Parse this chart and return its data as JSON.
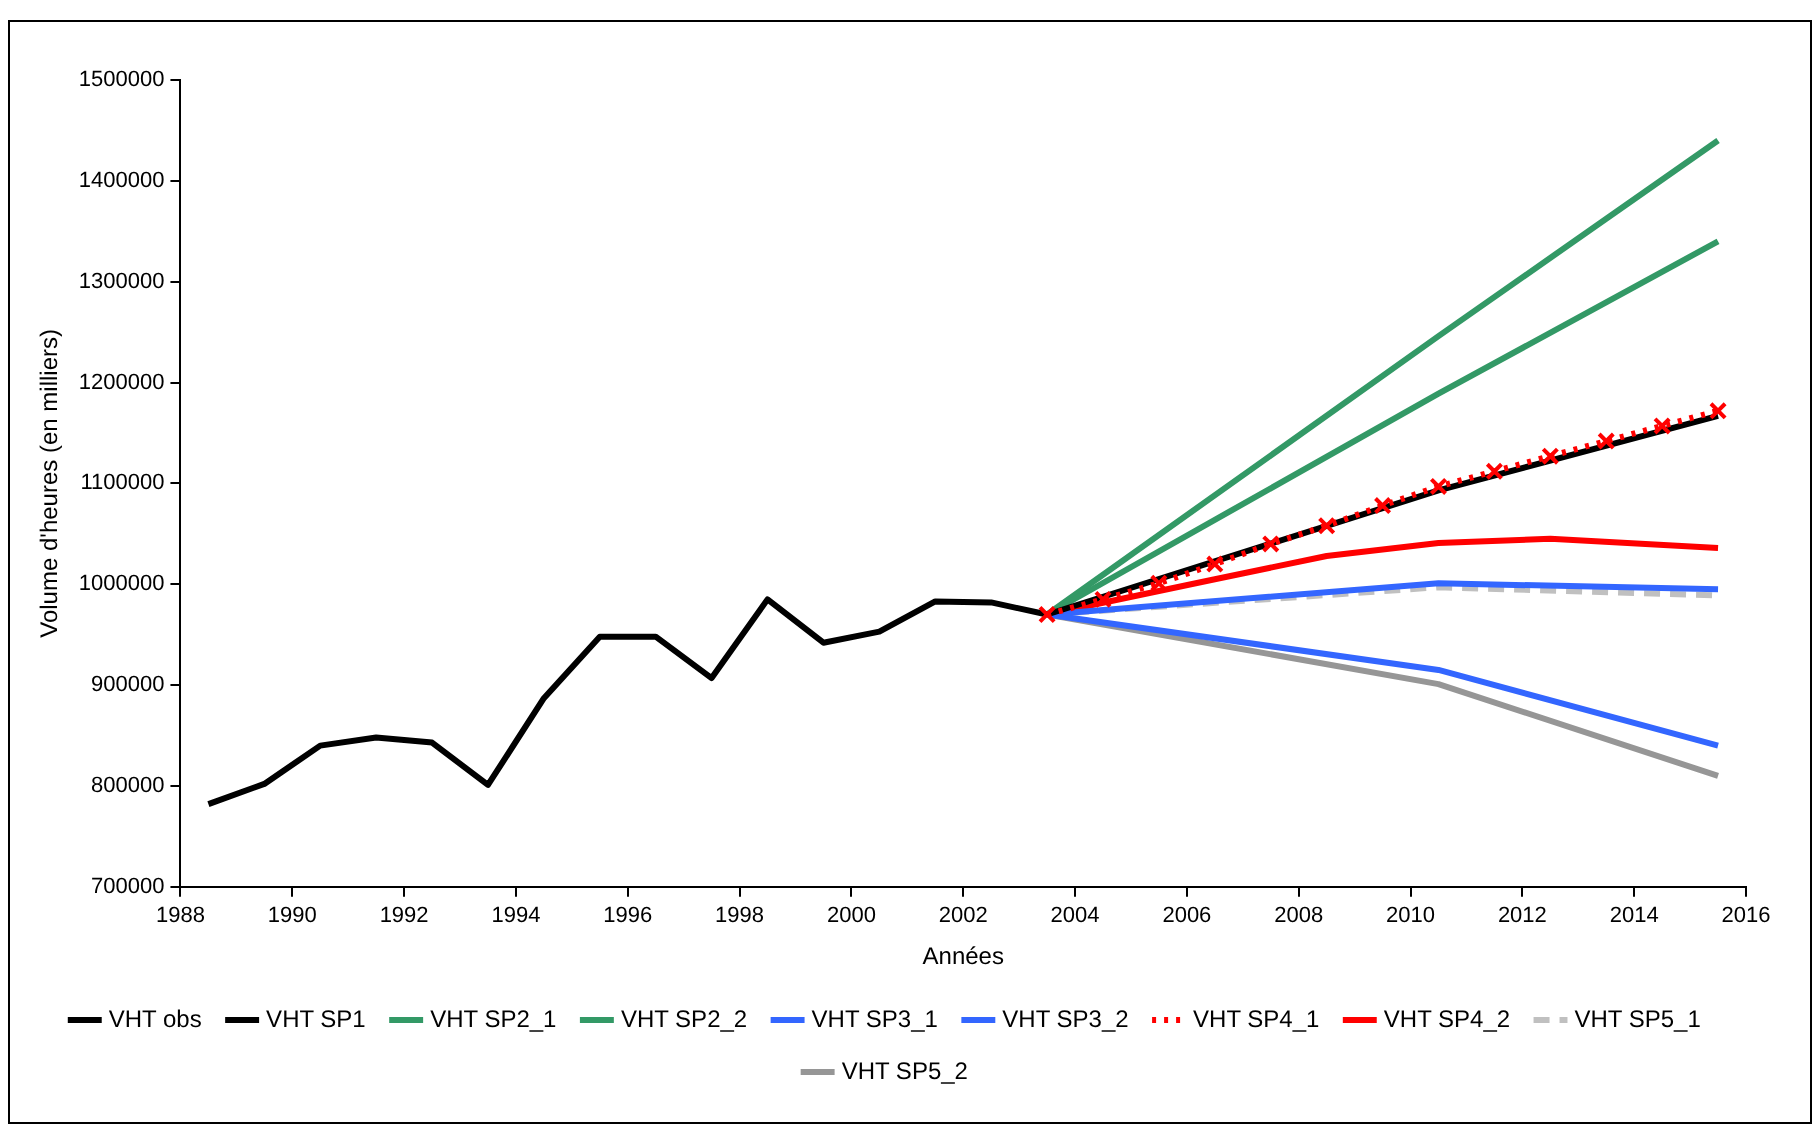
{
  "chart_data": {
    "type": "line",
    "xlabel": "Années",
    "ylabel": "Volume d'heures (en milliers)",
    "xlim": [
      1988,
      2016
    ],
    "xticks": [
      1988,
      1990,
      1992,
      1994,
      1996,
      1998,
      2000,
      2002,
      2004,
      2006,
      2008,
      2010,
      2012,
      2014,
      2016
    ],
    "ylim": [
      700000,
      1500000
    ],
    "yticks": [
      700000,
      800000,
      900000,
      1000000,
      1100000,
      1200000,
      1300000,
      1400000,
      1500000
    ],
    "grid": false,
    "legend": "bottom",
    "marker": "none",
    "series": [
      {
        "name": "VHT obs",
        "color": "#000000",
        "x": [
          1988.5,
          1989.5,
          1990.5,
          1991.5,
          1992.5,
          1993.5,
          1994.5,
          1995.5,
          1996.5,
          1997.5,
          1998.5,
          1999.5,
          2000.5,
          2001.5,
          2002.5,
          2003.5
        ],
        "values": [
          782000,
          802000,
          840000,
          848000,
          843000,
          801000,
          887000,
          948000,
          948000,
          907000,
          985000,
          942000,
          953000,
          983000,
          982000,
          970000
        ]
      },
      {
        "name": "VHT SP1",
        "color": "#000000",
        "x": [
          2003.5,
          2010.5,
          2015.5
        ],
        "values": [
          970000,
          1093000,
          1167000
        ]
      },
      {
        "name": "VHT SP2_1",
        "color": "#339966",
        "x": [
          2003.5,
          2010.5,
          2015.5
        ],
        "values": [
          970000,
          1189000,
          1340000
        ]
      },
      {
        "name": "VHT SP2_2",
        "color": "#339966",
        "x": [
          2003.5,
          2010.5,
          2015.5
        ],
        "values": [
          970000,
          1246000,
          1440000
        ]
      },
      {
        "name": "VHT SP3_1",
        "color": "#3366ff",
        "x": [
          2003.5,
          2010.5,
          2015.5
        ],
        "values": [
          970000,
          1001000,
          995000
        ]
      },
      {
        "name": "VHT SP3_2",
        "color": "#3366ff",
        "x": [
          2003.5,
          2010.5,
          2015.5
        ],
        "values": [
          970000,
          915000,
          840000
        ]
      },
      {
        "name": "VHT SP4_1",
        "color": "#ff0000",
        "marker": "cross",
        "line_style": "dotted",
        "x": [
          2003.5,
          2004.5,
          2005.5,
          2006.5,
          2007.5,
          2008.5,
          2009.5,
          2010.5,
          2011.5,
          2012.5,
          2013.5,
          2014.5,
          2015.5
        ],
        "values": [
          970000,
          985000,
          1001000,
          1020000,
          1040000,
          1058000,
          1078000,
          1097000,
          1112000,
          1127000,
          1142000,
          1157000,
          1172000
        ]
      },
      {
        "name": "VHT SP4_2",
        "color": "#ff0000",
        "x": [
          2003.5,
          2006.5,
          2008.5,
          2010.5,
          2012.5,
          2015.5
        ],
        "values": [
          970000,
          1005000,
          1028000,
          1041000,
          1045000,
          1036000
        ]
      },
      {
        "name": "VHT SP5_1",
        "color": "#c0c0c0",
        "line_style": "dashed",
        "x": [
          2003.5,
          2010.5,
          2015.5
        ],
        "values": [
          970000,
          997000,
          989000
        ]
      },
      {
        "name": "VHT SP5_2",
        "color": "#969696",
        "x": [
          2003.5,
          2010.5,
          2015.5
        ],
        "values": [
          970000,
          901000,
          810000
        ]
      }
    ]
  }
}
